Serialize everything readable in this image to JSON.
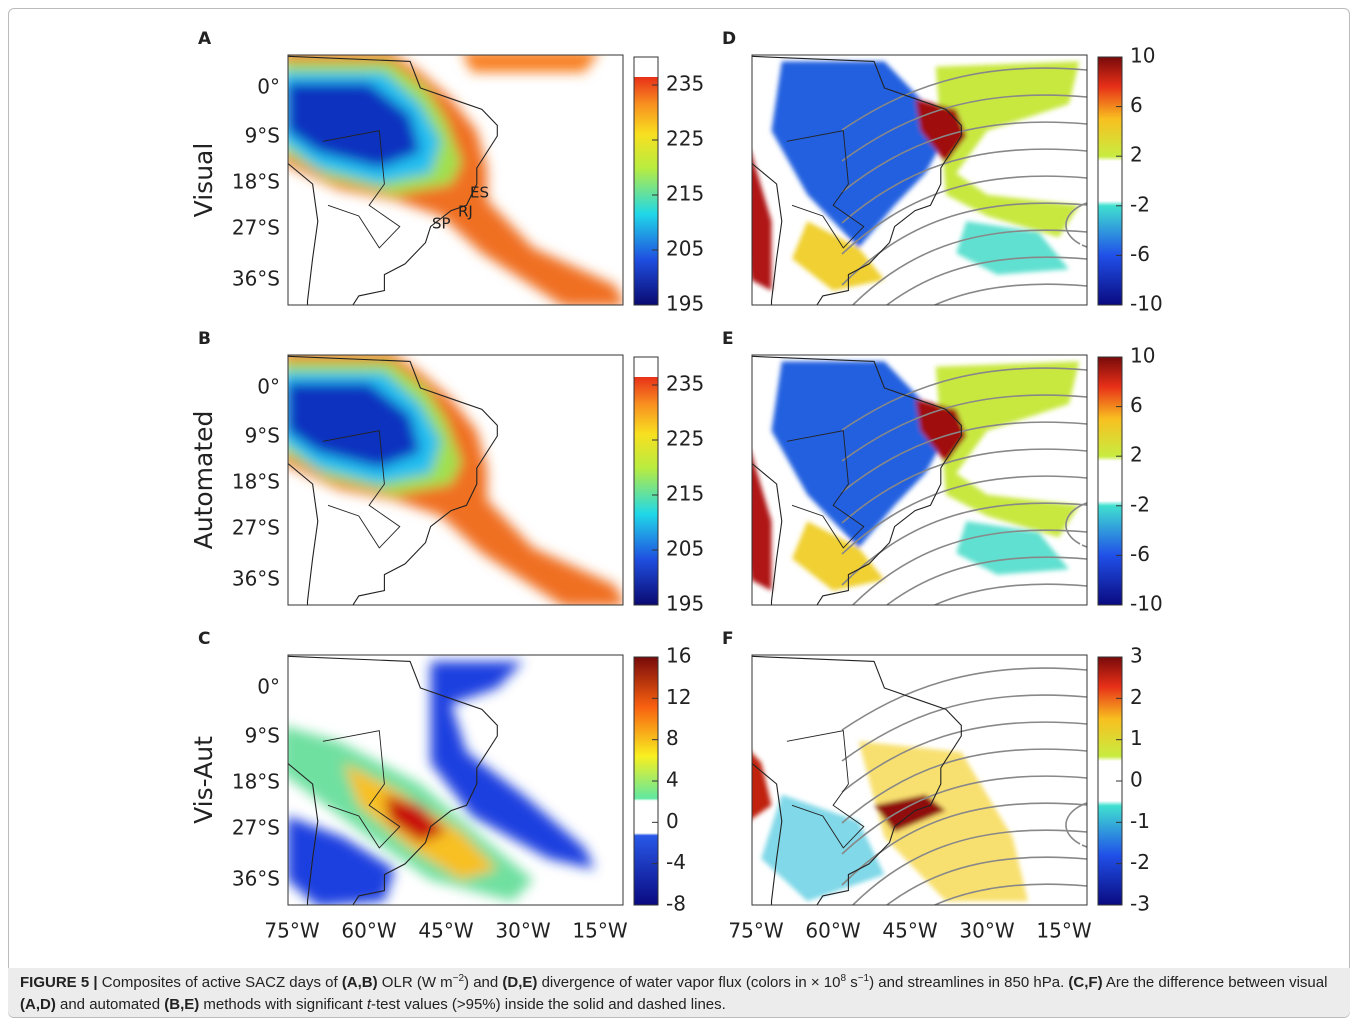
{
  "panels": [
    {
      "letter": "A",
      "row_label": "Visual",
      "colorbar_ticks": [
        235,
        225,
        215,
        205,
        195
      ],
      "annotations": [
        "ES",
        "RJ",
        "SP"
      ]
    },
    {
      "letter": "B",
      "row_label": "Automated",
      "colorbar_ticks": [
        235,
        225,
        215,
        205,
        195
      ]
    },
    {
      "letter": "C",
      "row_label": "Vis-Aut",
      "colorbar_ticks": [
        16,
        12,
        8,
        4,
        0,
        -4,
        -8
      ]
    },
    {
      "letter": "D",
      "colorbar_ticks": [
        10,
        6,
        2,
        -2,
        -6,
        -10
      ]
    },
    {
      "letter": "E",
      "colorbar_ticks": [
        10,
        6,
        2,
        -2,
        -6,
        -10
      ]
    },
    {
      "letter": "F",
      "colorbar_ticks": [
        3,
        2,
        1,
        0,
        -1,
        -2,
        -3
      ]
    }
  ],
  "y_ticks": [
    "0°",
    "9°S",
    "18°S",
    "27°S",
    "36°S"
  ],
  "x_ticks": [
    "75°W",
    "60°W",
    "45°W",
    "30°W",
    "15°W"
  ],
  "caption": [
    {
      "text": "FIGURE 5 |",
      "style": "bold"
    },
    {
      "text": " Composites of active SACZ days of "
    },
    {
      "text": "(A,B)",
      "style": "bold"
    },
    {
      "text": " OLR (W m"
    },
    {
      "text": "−2",
      "style": "sup"
    },
    {
      "text": ") and "
    },
    {
      "text": "(D,E)",
      "style": "bold"
    },
    {
      "text": " divergence of water vapor flux (colors in × 10"
    },
    {
      "text": "8",
      "style": "sup"
    },
    {
      "text": " s"
    },
    {
      "text": "−1",
      "style": "sup"
    },
    {
      "text": ") and streamlines in 850 hPa. "
    },
    {
      "text": "(C,F)",
      "style": "bold"
    },
    {
      "text": " Are the difference between visual "
    },
    {
      "text": "(A,D)",
      "style": "bold"
    },
    {
      "text": " and automated "
    },
    {
      "text": "(B,E)",
      "style": "bold"
    },
    {
      "text": " methods with significant "
    },
    {
      "text": "t",
      "style": "italic"
    },
    {
      "text": "-test values (>95%) inside the solid and dashed lines."
    }
  ]
}
